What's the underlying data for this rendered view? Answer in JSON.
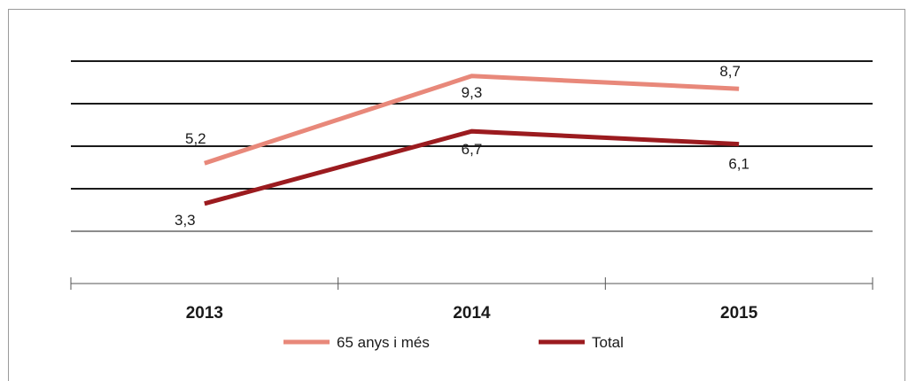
{
  "chart_data": {
    "type": "line",
    "categories": [
      "2013",
      "2014",
      "2015"
    ],
    "series": [
      {
        "name": "65 anys i més",
        "values": [
          5.2,
          9.3,
          8.7
        ],
        "value_labels": [
          "5,2",
          "9,3",
          "8,7"
        ],
        "color": "#e8887a"
      },
      {
        "name": "Total",
        "values": [
          3.3,
          6.7,
          6.1
        ],
        "value_labels": [
          "3,3",
          "6,7",
          "6,1"
        ],
        "color": "#9b1b1f"
      }
    ],
    "title": "",
    "xlabel": "",
    "ylabel": "",
    "ylim": [
      2,
      10
    ],
    "gridlines": [
      2,
      4,
      6,
      8,
      10
    ],
    "grid": true,
    "legend": "bottom"
  }
}
